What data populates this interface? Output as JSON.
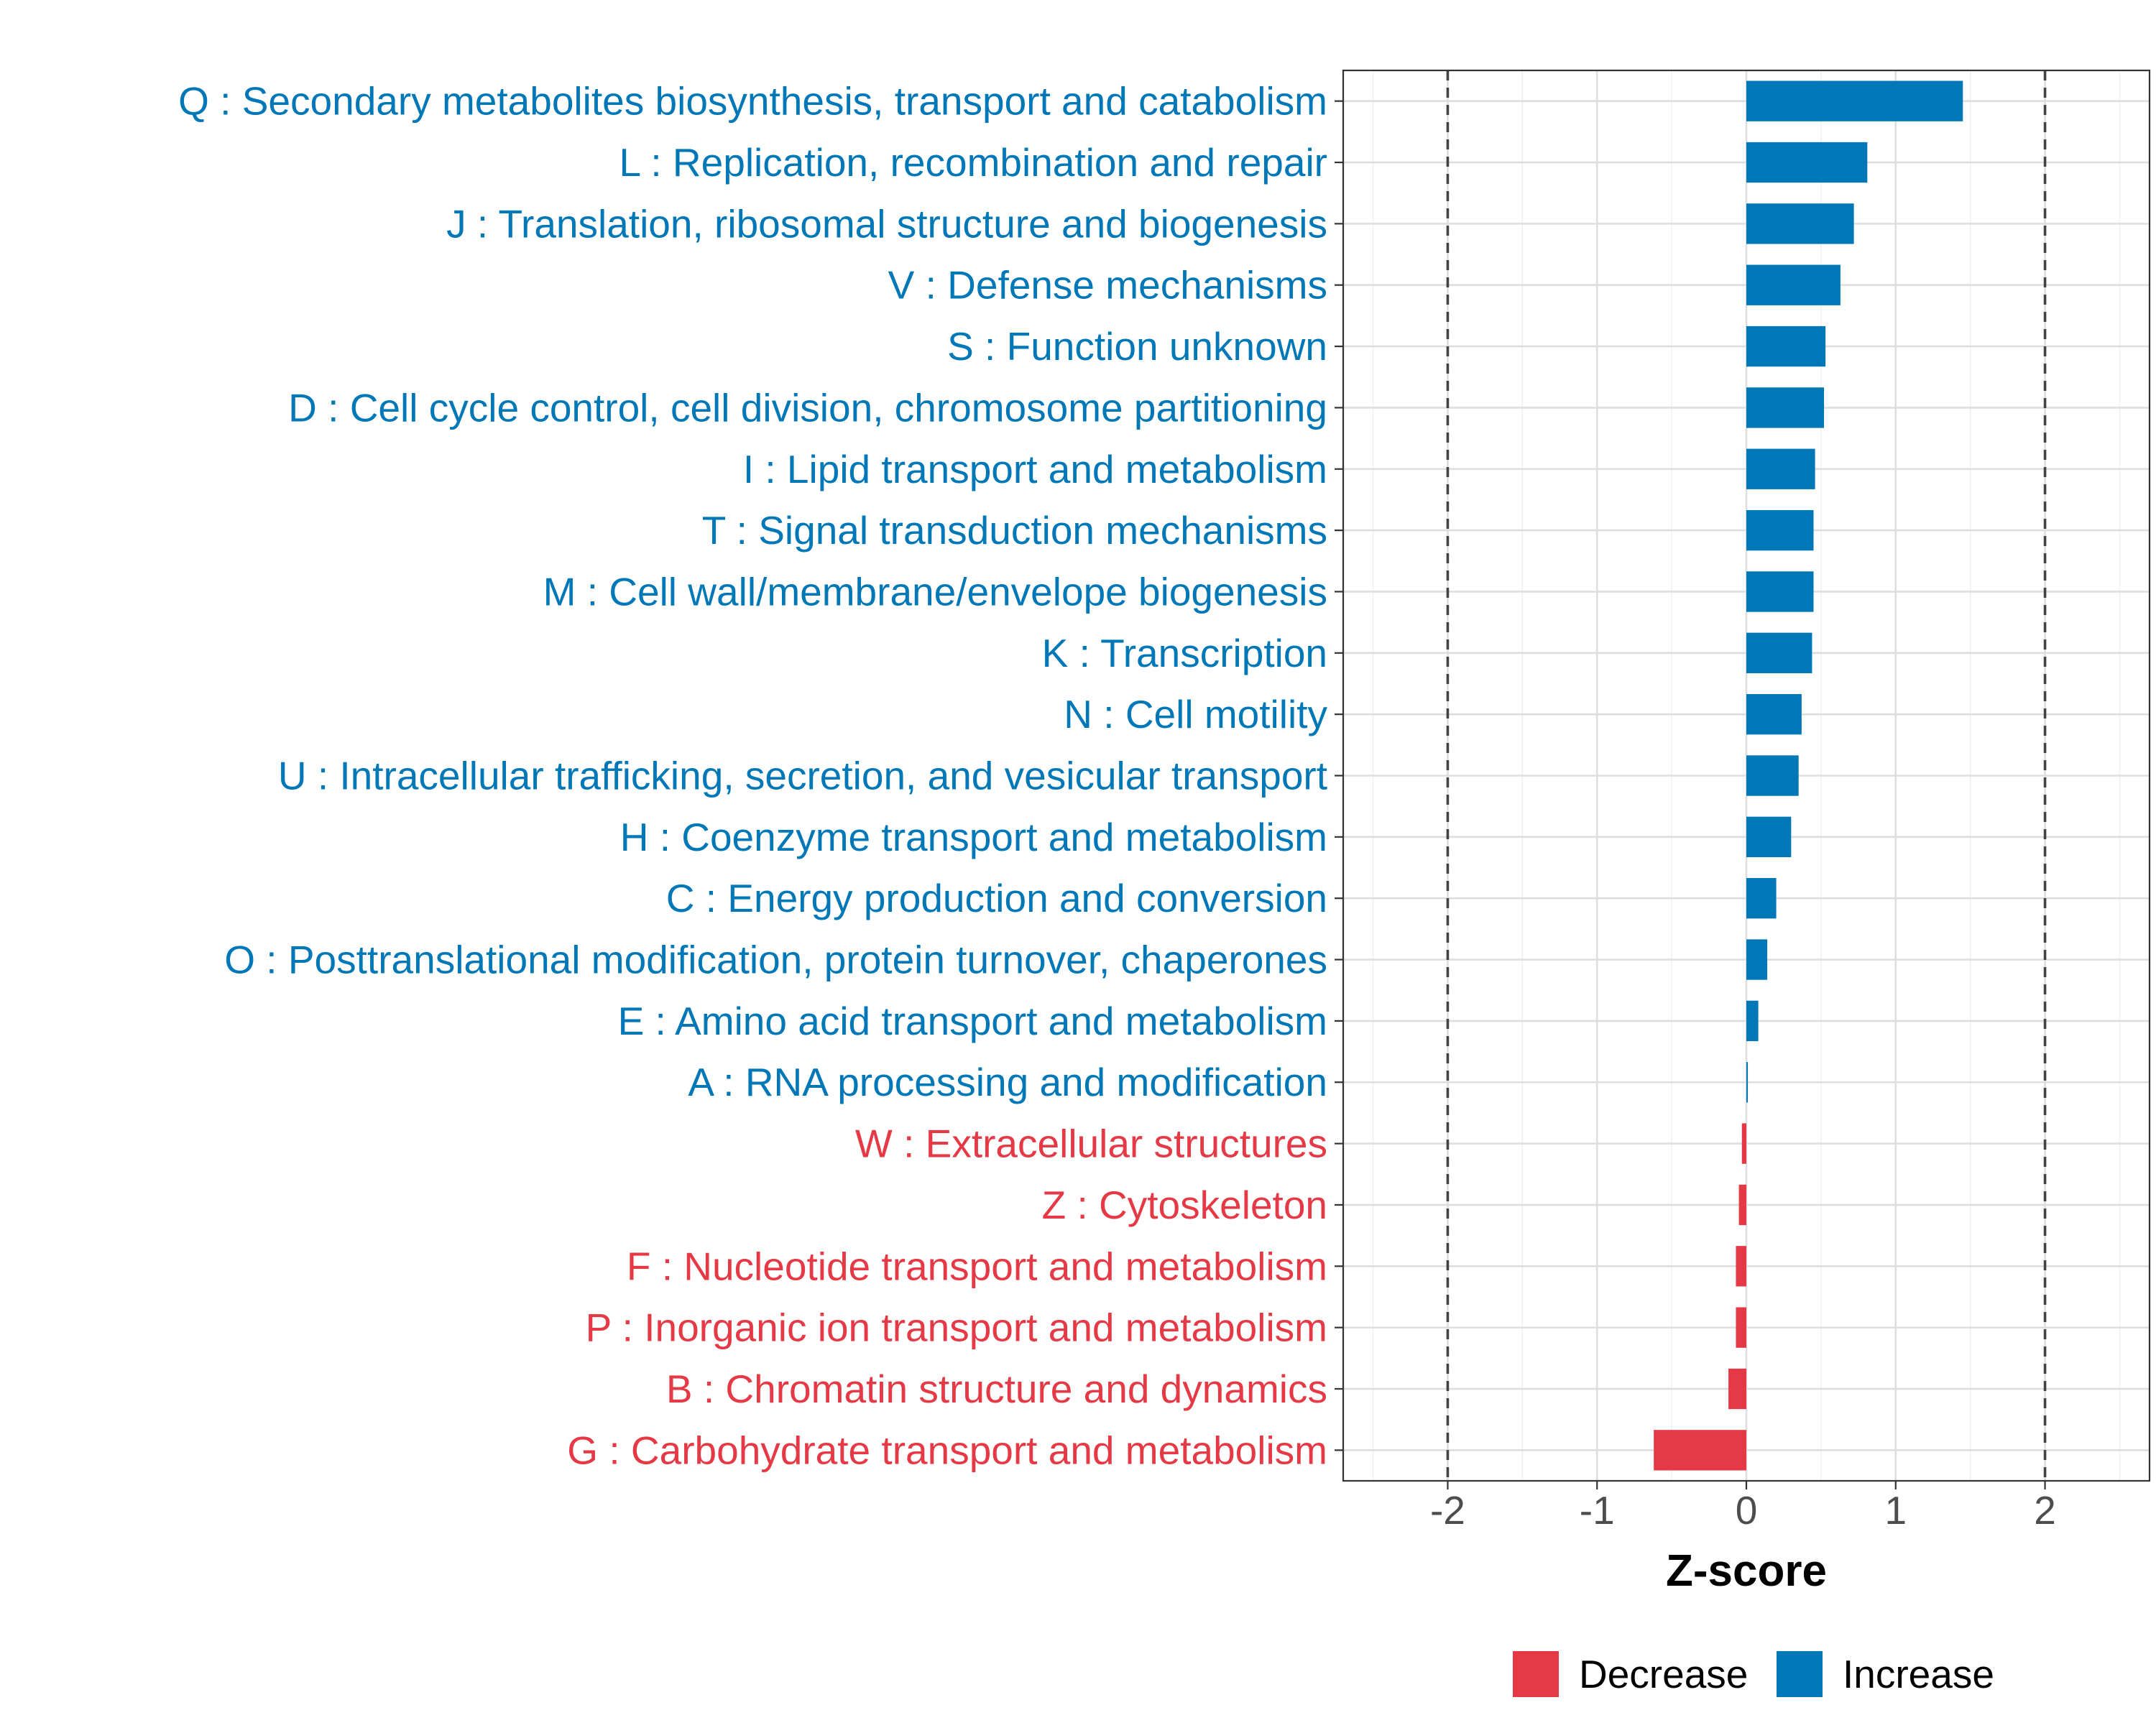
{
  "chart_data": {
    "type": "bar",
    "orientation": "horizontal",
    "xlabel": "Z-score",
    "ylabel": "",
    "xlim": [
      -2.7,
      2.7
    ],
    "xticks": [
      -2,
      -1,
      0,
      1,
      2
    ],
    "xtick_labels": [
      "-2",
      "-1",
      "0",
      "1",
      "2"
    ],
    "reference_lines": [
      -2,
      2
    ],
    "grid": true,
    "categories": [
      "Q : Secondary metabolites biosynthesis, transport and catabolism",
      "L : Replication, recombination and repair",
      "J : Translation, ribosomal structure and biogenesis",
      "V : Defense mechanisms",
      "S : Function unknown",
      "D : Cell cycle control, cell division, chromosome partitioning",
      "I : Lipid transport and metabolism",
      "T : Signal transduction mechanisms",
      "M : Cell wall/membrane/envelope biogenesis",
      "K : Transcription",
      "N : Cell motility",
      "U : Intracellular trafficking, secretion, and vesicular transport",
      "H : Coenzyme transport and metabolism",
      "C : Energy production and conversion",
      "O : Posttranslational modification, protein turnover, chaperones",
      "E : Amino acid transport and metabolism",
      "A : RNA processing and modification",
      "W : Extracellular structures",
      "Z : Cytoskeleton",
      "F : Nucleotide transport and metabolism",
      "P : Inorganic ion transport and metabolism",
      "B : Chromatin structure and dynamics",
      "G : Carbohydrate transport and metabolism"
    ],
    "values": [
      1.45,
      0.81,
      0.72,
      0.63,
      0.53,
      0.52,
      0.46,
      0.45,
      0.45,
      0.44,
      0.37,
      0.35,
      0.3,
      0.2,
      0.14,
      0.08,
      0.01,
      -0.03,
      -0.05,
      -0.07,
      -0.07,
      -0.12,
      -0.62
    ],
    "groups": [
      "Increase",
      "Increase",
      "Increase",
      "Increase",
      "Increase",
      "Increase",
      "Increase",
      "Increase",
      "Increase",
      "Increase",
      "Increase",
      "Increase",
      "Increase",
      "Increase",
      "Increase",
      "Increase",
      "Increase",
      "Decrease",
      "Decrease",
      "Decrease",
      "Decrease",
      "Decrease",
      "Decrease"
    ],
    "legend": [
      {
        "label": "Decrease",
        "color": "#E63946"
      },
      {
        "label": "Increase",
        "color": "#0077B6"
      }
    ],
    "legend_position": "bottom",
    "colors": {
      "Increase": "#0077B6",
      "Decrease": "#E63946"
    }
  }
}
